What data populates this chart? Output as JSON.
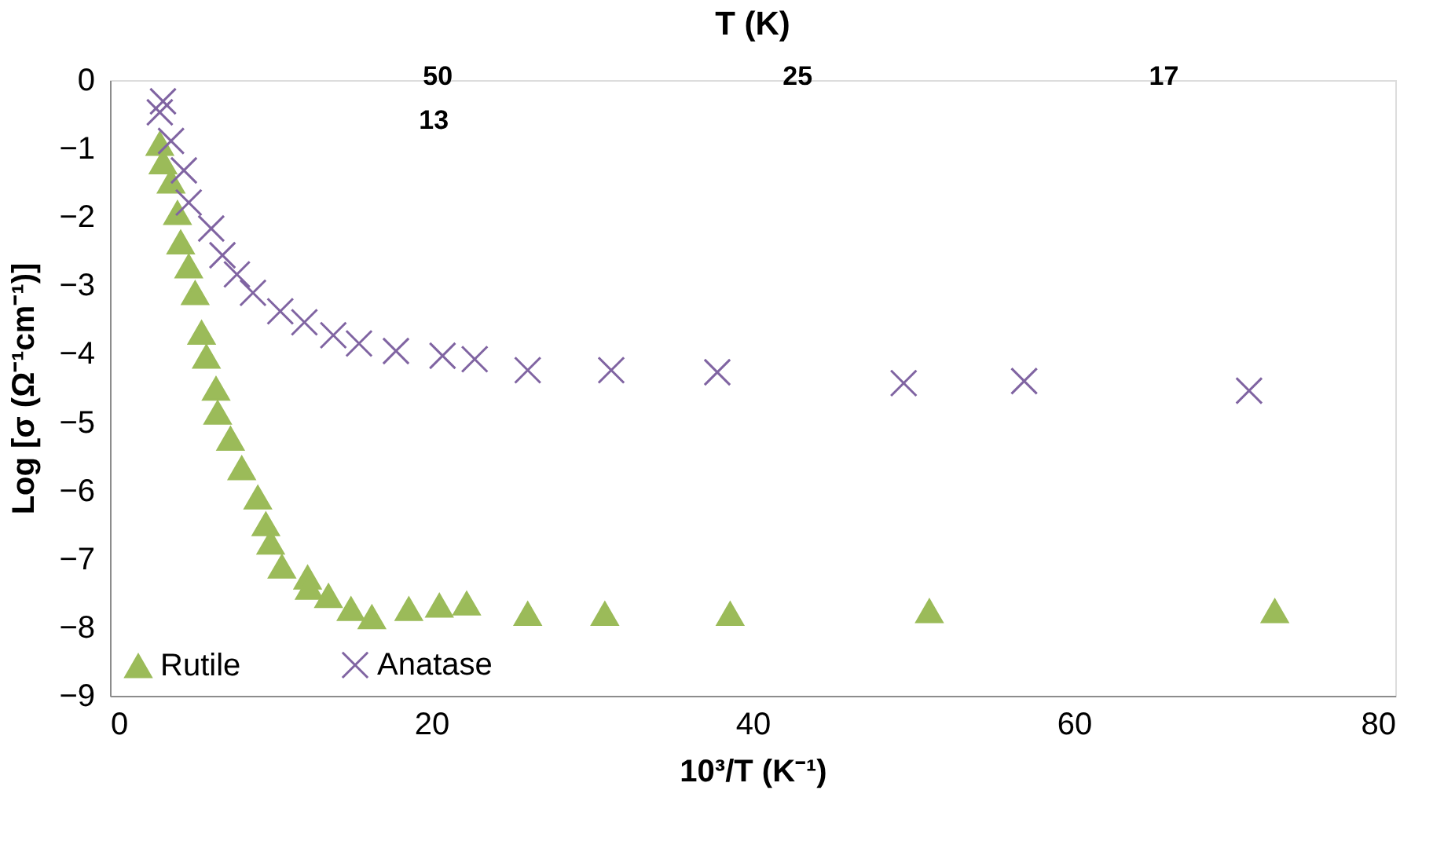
{
  "chart_data": {
    "type": "scatter",
    "xlabel": "10³/T (K⁻¹)",
    "ylabel": "Log [σ (Ω⁻¹cm⁻¹)]",
    "title": "T (K)",
    "xlim": [
      0,
      80
    ],
    "xticks": [
      0,
      20,
      40,
      60,
      80
    ],
    "ylim": [
      -9,
      0
    ],
    "yticks": [
      -9,
      -8,
      -7,
      -6,
      -5,
      -4,
      -3,
      -2,
      -1,
      0
    ],
    "annotations": [
      "50",
      "25",
      "17",
      "13"
    ],
    "grid": false,
    "legend": "bottom left",
    "series": [
      {
        "name": "Rutile",
        "color": "#9bbb59",
        "marker": "triangle",
        "x": [
          3.1,
          3.3,
          3.8,
          4.2,
          4.4,
          4.9,
          5.3,
          5.7,
          6.0,
          6.6,
          6.7,
          7.5,
          8.2,
          9.2,
          9.7,
          10.0,
          10.7,
          12.3,
          12.4,
          13.6,
          15.0,
          16.3,
          18.6,
          20.5,
          22.2,
          26.0,
          30.8,
          38.6,
          51.0,
          72.5
        ],
        "values": [
          -0.93,
          -1.2,
          -1.48,
          -1.94,
          -2.37,
          -2.72,
          -3.11,
          -3.69,
          -4.04,
          -4.51,
          -4.86,
          -5.24,
          -5.67,
          -6.1,
          -6.49,
          -6.76,
          -7.11,
          -7.27,
          -7.42,
          -7.54,
          -7.73,
          -7.85,
          -7.73,
          -7.68,
          -7.65,
          -7.8,
          -7.8,
          -7.8,
          -7.76,
          -7.76
        ]
      },
      {
        "name": "Anatase",
        "color": "#8064a2",
        "marker": "cross",
        "x": [
          3.3,
          3.1,
          3.8,
          4.6,
          4.9,
          6.3,
          7.0,
          7.9,
          8.9,
          10.6,
          12.1,
          13.9,
          15.5,
          17.8,
          20.7,
          22.7,
          26.0,
          31.2,
          37.8,
          49.4,
          56.9,
          70.9
        ],
        "values": [
          -0.31,
          -0.47,
          -0.89,
          -1.32,
          -1.79,
          -2.17,
          -2.56,
          -2.84,
          -3.11,
          -3.38,
          -3.54,
          -3.73,
          -3.85,
          -3.96,
          -4.03,
          -4.08,
          -4.24,
          -4.24,
          -4.27,
          -4.43,
          -4.4,
          -4.54
        ]
      }
    ]
  }
}
